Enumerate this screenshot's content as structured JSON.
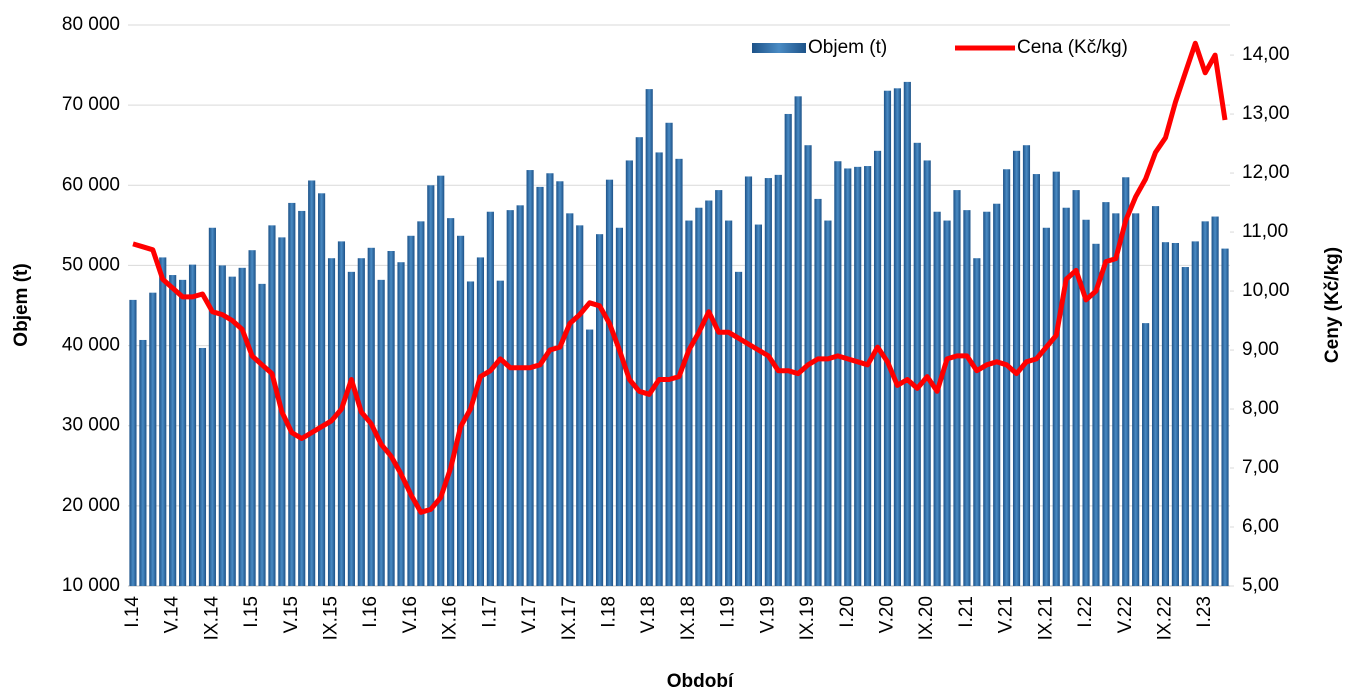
{
  "chart_data": {
    "type": "bar-line",
    "x_label": "Období",
    "y_label": "Objem (t)",
    "y2_label": "Ceny (Kč/kg)",
    "categories": [
      "I.14",
      null,
      null,
      null,
      "V.14",
      null,
      null,
      null,
      "IX.14",
      null,
      null,
      null,
      "I.15",
      null,
      null,
      null,
      "V.15",
      null,
      null,
      null,
      "IX.15",
      null,
      null,
      null,
      "I.16",
      null,
      null,
      null,
      "V.16",
      null,
      null,
      null,
      "IX.16",
      null,
      null,
      null,
      "I.17",
      null,
      null,
      null,
      "V.17",
      null,
      null,
      null,
      "IX.17",
      null,
      null,
      null,
      "I.18",
      null,
      null,
      null,
      "V.18",
      null,
      null,
      null,
      "IX.18",
      null,
      null,
      null,
      "I.19",
      null,
      null,
      null,
      "V.19",
      null,
      null,
      null,
      "IX.19",
      null,
      null,
      null,
      "I.20",
      null,
      null,
      null,
      "V.20",
      null,
      null,
      null,
      "IX.20",
      null,
      null,
      null,
      "I.21",
      null,
      null,
      null,
      "V.21",
      null,
      null,
      null,
      "IX.21",
      null,
      null,
      null,
      "I.22",
      null,
      null,
      null,
      "V.22",
      null,
      null,
      null,
      "IX.22",
      null,
      null,
      null,
      "I.23",
      null,
      null
    ],
    "series": [
      {
        "name": "Objem (t)",
        "kind": "bar",
        "color": "#2f6fa6",
        "values": [
          45700,
          40700,
          46600,
          51000,
          48800,
          48200,
          50100,
          39700,
          54700,
          50000,
          48600,
          49700,
          51900,
          47700,
          55000,
          53500,
          57800,
          56800,
          60600,
          59000,
          50900,
          53000,
          49200,
          50900,
          52200,
          48200,
          51800,
          50400,
          53700,
          55500,
          60000,
          61200,
          55900,
          53700,
          48000,
          51000,
          56700,
          48100,
          56900,
          57500,
          61900,
          59800,
          61500,
          60500,
          56500,
          55000,
          42000,
          53900,
          60700,
          54700,
          63100,
          66000,
          72000,
          64100,
          67800,
          63300,
          55600,
          57200,
          58100,
          59400,
          55600,
          49200,
          61100,
          55100,
          60900,
          61300,
          68900,
          71100,
          65000,
          58300,
          55600,
          63000,
          62100,
          62300,
          62400,
          64300,
          71800,
          72100,
          72900,
          65300,
          63100,
          56700,
          55600,
          59400,
          56900,
          50900,
          56700,
          57700,
          62000,
          64300,
          65000,
          61400,
          54700,
          61700,
          57200,
          59400,
          55700,
          52700,
          57900,
          56500,
          61000,
          56500,
          42800,
          57400,
          52900,
          52800,
          49800,
          53000,
          55500,
          56100,
          52100
        ]
      },
      {
        "name": "Cena (Kč/kg)",
        "kind": "line",
        "axis": "y2",
        "color": "#ff0000",
        "values": [
          10.8,
          10.75,
          10.7,
          10.2,
          10.05,
          9.9,
          9.9,
          9.95,
          9.65,
          9.6,
          9.5,
          9.35,
          8.9,
          8.75,
          8.6,
          7.95,
          7.6,
          7.5,
          7.6,
          7.7,
          7.8,
          8.0,
          8.5,
          7.95,
          7.75,
          7.4,
          7.2,
          6.9,
          6.55,
          6.25,
          6.3,
          6.5,
          7.0,
          7.7,
          8.0,
          8.55,
          8.65,
          8.85,
          8.7,
          8.7,
          8.7,
          8.75,
          9.0,
          9.05,
          9.45,
          9.6,
          9.8,
          9.75,
          9.45,
          9.0,
          8.5,
          8.3,
          8.25,
          8.5,
          8.5,
          8.55,
          9.0,
          9.3,
          9.65,
          9.3,
          9.3,
          9.2,
          9.1,
          9.0,
          8.9,
          8.65,
          8.65,
          8.6,
          8.75,
          8.85,
          8.85,
          8.9,
          8.85,
          8.8,
          8.75,
          9.05,
          8.8,
          8.4,
          8.5,
          8.35,
          8.55,
          8.3,
          8.85,
          8.9,
          8.9,
          8.65,
          8.75,
          8.8,
          8.75,
          8.6,
          8.8,
          8.85,
          9.05,
          9.25,
          10.2,
          10.35,
          9.85,
          10.0,
          10.5,
          10.55,
          11.2,
          11.6,
          11.9,
          12.35,
          12.6,
          13.2,
          13.7,
          14.2,
          13.7,
          14.0,
          12.9
        ]
      }
    ],
    "ylim": [
      10000,
      80000
    ],
    "yticks": [
      {
        "value": 10000,
        "label": "10 000"
      },
      {
        "value": 20000,
        "label": "20 000"
      },
      {
        "value": 30000,
        "label": "30 000"
      },
      {
        "value": 40000,
        "label": "40 000"
      },
      {
        "value": 50000,
        "label": "50 000"
      },
      {
        "value": 60000,
        "label": "60 000"
      },
      {
        "value": 70000,
        "label": "70 000"
      },
      {
        "value": 80000,
        "label": "80 000"
      }
    ],
    "y2lim": [
      5,
      14.51
    ],
    "y2ticks": [
      {
        "value": 5,
        "label": "5,00"
      },
      {
        "value": 6,
        "label": "6,00"
      },
      {
        "value": 7,
        "label": "7,00"
      },
      {
        "value": 8,
        "label": "8,00"
      },
      {
        "value": 9,
        "label": "9,00"
      },
      {
        "value": 10,
        "label": "10,00"
      },
      {
        "value": 11,
        "label": "11,00"
      },
      {
        "value": 12,
        "label": "12,00"
      },
      {
        "value": 13,
        "label": "13,00"
      },
      {
        "value": 14,
        "label": "14,00"
      }
    ],
    "grid": true,
    "legend": "top-right"
  }
}
